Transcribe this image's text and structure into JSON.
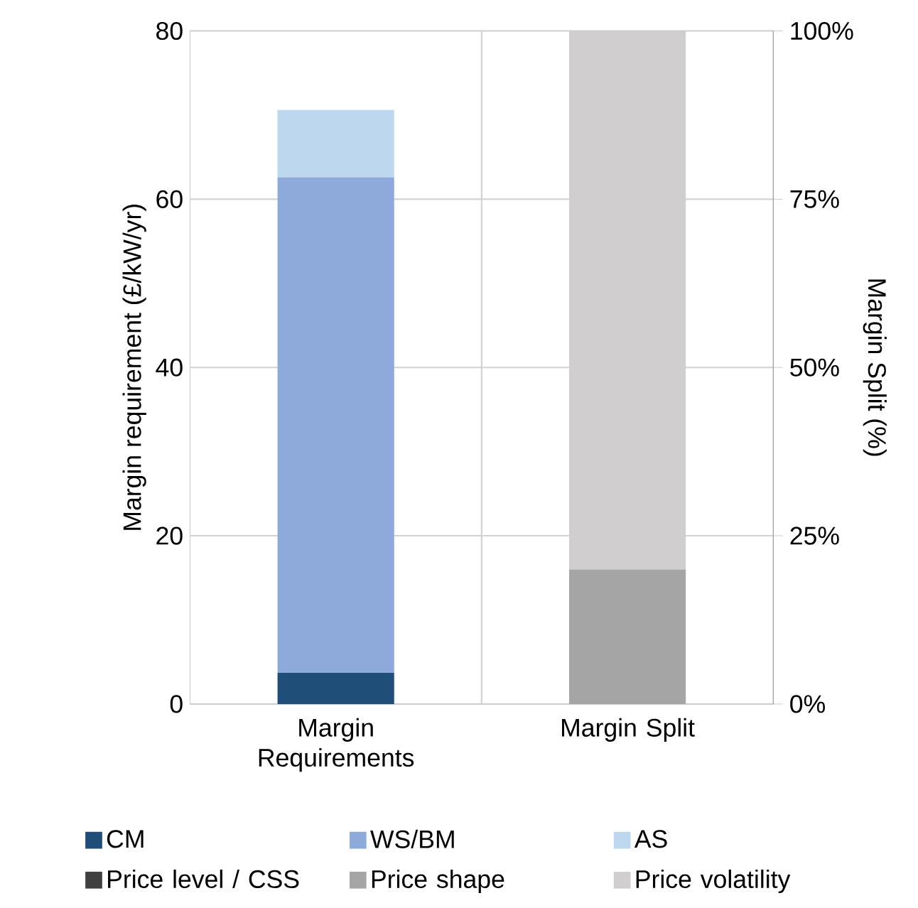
{
  "chart_data": {
    "type": "bar",
    "stacked": true,
    "ylabel": "Margin requirement (£/kW/yr)",
    "y2label": "Margin Split (%)",
    "categories": [
      "Margin Requirements",
      "Margin Split"
    ],
    "ylim": [
      0,
      80
    ],
    "yticks": [
      0,
      20,
      40,
      60,
      80
    ],
    "y2lim": [
      0,
      100
    ],
    "y2ticks": [
      {
        "value": 0,
        "label": "0%"
      },
      {
        "value": 25,
        "label": "25%"
      },
      {
        "value": 50,
        "label": "50%"
      },
      {
        "value": 75,
        "label": "75%"
      },
      {
        "value": 100,
        "label": "100%"
      }
    ],
    "grid": true,
    "legend": "bottom",
    "series": [
      {
        "name": "CM",
        "color": "#1f4e79",
        "values": [
          3.7,
          null
        ]
      },
      {
        "name": "WS/BM",
        "color": "#8eaadb",
        "values": [
          58.9,
          null
        ]
      },
      {
        "name": "AS",
        "color": "#bdd7ee",
        "values": [
          8.0,
          null
        ]
      },
      {
        "name": "Price level / CSS",
        "color": "#404040",
        "values": [
          null,
          0
        ],
        "axis": "y2"
      },
      {
        "name": "Price shape",
        "color": "#a5a5a5",
        "values": [
          null,
          20
        ],
        "axis": "y2"
      },
      {
        "name": "Price volatility",
        "color": "#d0cece",
        "values": [
          null,
          80
        ],
        "axis": "y2"
      }
    ]
  }
}
